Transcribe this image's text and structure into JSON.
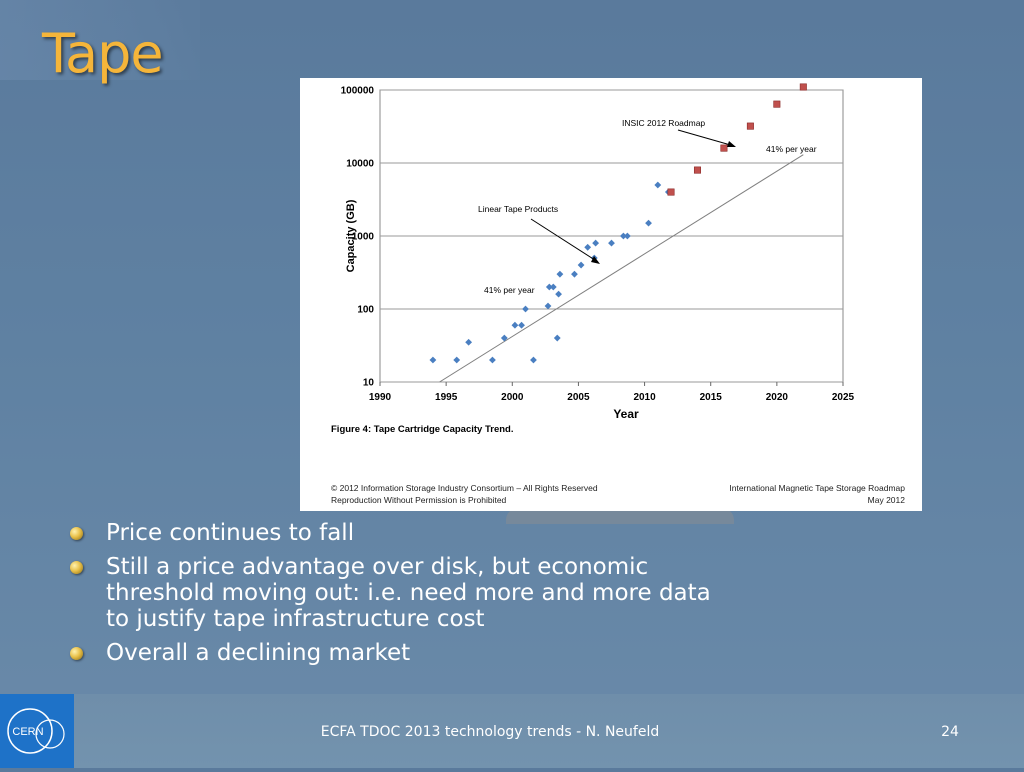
{
  "slide": {
    "title": "Tape",
    "bullets": [
      "Price continues to fall",
      "Still a price advantage over disk, but economic threshold moving out: i.e. need more and more data to justify tape infrastructure cost",
      "Overall a declining market"
    ],
    "footer": "ECFA TDOC 2013 technology trends - N. Neufeld",
    "page_number": "24",
    "logo_text": "CERN"
  },
  "colors": {
    "title": "#f5b53a",
    "products": "#4a7fc1",
    "roadmap": "#c0504d",
    "logo_bg": "#1e72c8"
  },
  "chart_data": {
    "type": "scatter",
    "xlabel": "Year",
    "ylabel": "Capacity (GB)",
    "xlim": [
      1990,
      2025
    ],
    "ylim": [
      10,
      100000
    ],
    "y_scale": "log",
    "grid": "horizontal",
    "x_ticks": [
      "1990",
      "1995",
      "2000",
      "2005",
      "2010",
      "2015",
      "2020",
      "2025"
    ],
    "y_ticks": [
      "10",
      "100",
      "1000",
      "10000",
      "100000"
    ],
    "caption": "Figure 4:  Tape Cartridge Capacity Trend.",
    "copyright": "© 2012 Information Storage Industry Consortium – All Rights Reserved",
    "reproduction": "Reproduction Without Permission is Prohibited",
    "source": "International Magnetic Tape Storage Roadmap",
    "source_date": "May 2012",
    "annotations": {
      "roadmap_label": "INSIC 2012 Roadmap",
      "roadmap_rate": "41% per year",
      "products_label": "Linear Tape Products",
      "products_rate": "41% per year"
    },
    "trend": {
      "x": [
        1994.5,
        2022
      ],
      "y": [
        10,
        13000
      ]
    },
    "series": [
      {
        "name": "Linear Tape Products",
        "marker": "diamond",
        "points": [
          [
            1994,
            20
          ],
          [
            1995.8,
            20
          ],
          [
            1996.7,
            35
          ],
          [
            1998.5,
            20
          ],
          [
            1999.4,
            40
          ],
          [
            2000.2,
            60
          ],
          [
            2000.7,
            60
          ],
          [
            2001,
            100
          ],
          [
            2001.6,
            20
          ],
          [
            2002.7,
            110
          ],
          [
            2002.8,
            200
          ],
          [
            2003.1,
            200
          ],
          [
            2003.4,
            40
          ],
          [
            2003.5,
            160
          ],
          [
            2003.6,
            300
          ],
          [
            2004.7,
            300
          ],
          [
            2005.2,
            400
          ],
          [
            2005.7,
            700
          ],
          [
            2006.2,
            500
          ],
          [
            2006.3,
            800
          ],
          [
            2007.5,
            800
          ],
          [
            2008.4,
            1000
          ],
          [
            2008.7,
            1000
          ],
          [
            2010.3,
            1500
          ],
          [
            2011,
            5000
          ],
          [
            2011.8,
            4000
          ]
        ]
      },
      {
        "name": "INSIC 2012 Roadmap",
        "marker": "square",
        "points": [
          [
            2012,
            4000
          ],
          [
            2014,
            8000
          ],
          [
            2016,
            16000
          ],
          [
            2018,
            32000
          ],
          [
            2020,
            64000
          ],
          [
            2022,
            128000
          ]
        ]
      }
    ]
  }
}
